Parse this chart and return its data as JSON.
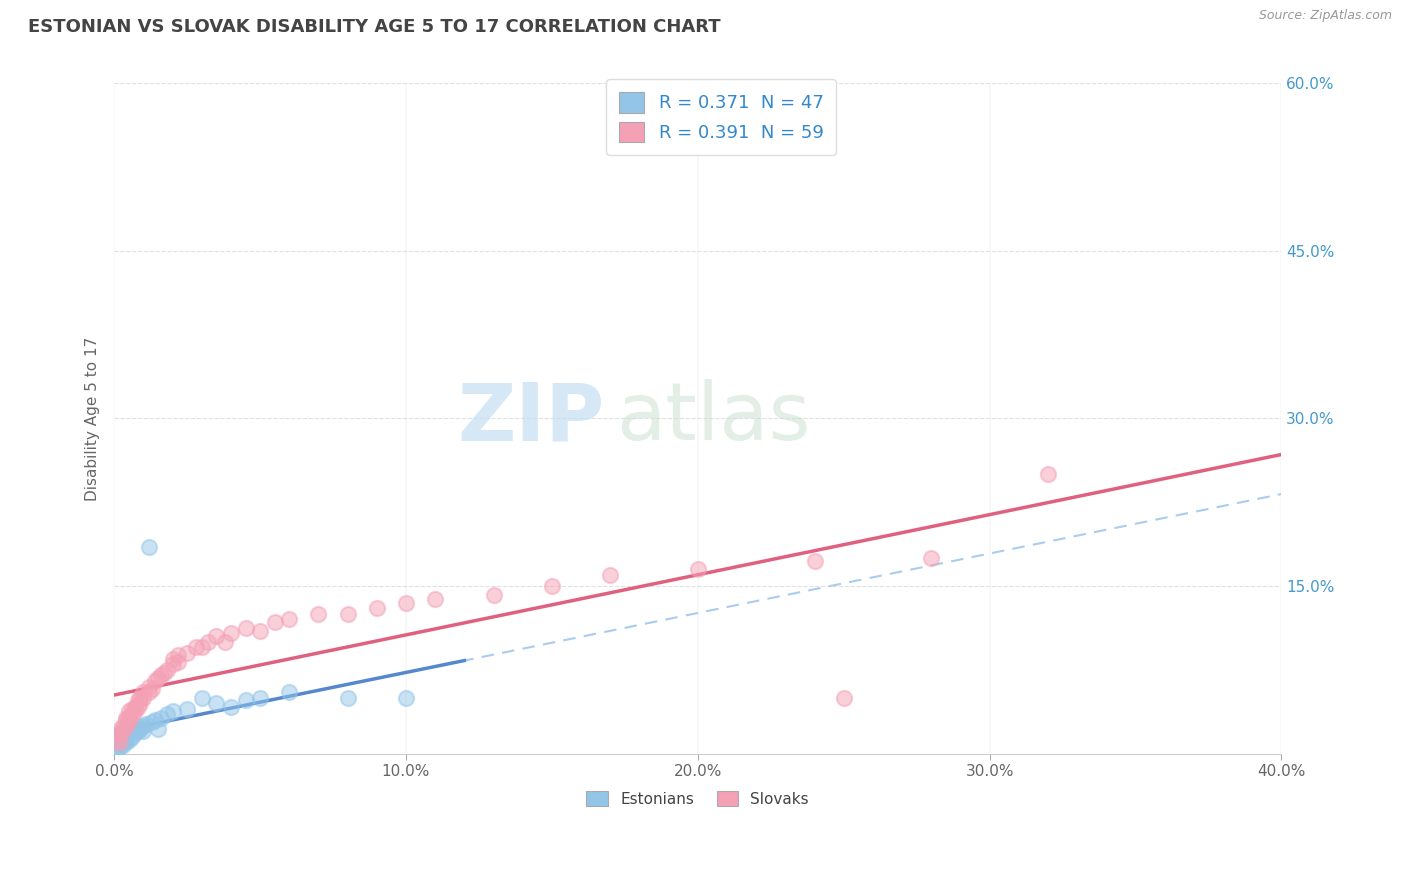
{
  "title": "ESTONIAN VS SLOVAK DISABILITY AGE 5 TO 17 CORRELATION CHART",
  "source_text": "Source: ZipAtlas.com",
  "ylabel": "Disability Age 5 to 17",
  "xlim": [
    0.0,
    0.4
  ],
  "ylim": [
    0.0,
    0.6
  ],
  "xtick_labels": [
    "0.0%",
    "10.0%",
    "20.0%",
    "30.0%",
    "40.0%"
  ],
  "xtick_vals": [
    0.0,
    0.1,
    0.2,
    0.3,
    0.4
  ],
  "ytick_labels_right": [
    "15.0%",
    "30.0%",
    "45.0%",
    "60.0%"
  ],
  "ytick_vals_right": [
    0.15,
    0.3,
    0.45,
    0.6
  ],
  "R_estonian": 0.371,
  "N_estonian": 47,
  "R_slovak": 0.391,
  "N_slovak": 59,
  "legend_label_1": "R = 0.371  N = 47",
  "legend_label_2": "R = 0.391  N = 59",
  "legend_bottom_1": "Estonians",
  "legend_bottom_2": "Slovaks",
  "watermark_zip": "ZIP",
  "watermark_atlas": "atlas",
  "estonian_color": "#92C5E8",
  "slovak_color": "#F4A0B5",
  "estonian_line_color": "#5588CC",
  "slovak_line_color": "#E06080",
  "estonian_dash_color": "#AACCEE",
  "background_color": "#FFFFFF",
  "grid_color": "#E0E0E0",
  "title_color": "#444444",
  "axis_label_color": "#666666",
  "estonian_scatter": [
    [
      0.001,
      0.005
    ],
    [
      0.001,
      0.008
    ],
    [
      0.001,
      0.01
    ],
    [
      0.001,
      0.012
    ],
    [
      0.002,
      0.006
    ],
    [
      0.002,
      0.009
    ],
    [
      0.002,
      0.012
    ],
    [
      0.002,
      0.015
    ],
    [
      0.002,
      0.018
    ],
    [
      0.003,
      0.008
    ],
    [
      0.003,
      0.01
    ],
    [
      0.003,
      0.013
    ],
    [
      0.003,
      0.016
    ],
    [
      0.003,
      0.02
    ],
    [
      0.004,
      0.01
    ],
    [
      0.004,
      0.013
    ],
    [
      0.004,
      0.018
    ],
    [
      0.004,
      0.022
    ],
    [
      0.005,
      0.012
    ],
    [
      0.005,
      0.018
    ],
    [
      0.005,
      0.022
    ],
    [
      0.006,
      0.015
    ],
    [
      0.006,
      0.02
    ],
    [
      0.007,
      0.018
    ],
    [
      0.007,
      0.022
    ],
    [
      0.008,
      0.02
    ],
    [
      0.008,
      0.025
    ],
    [
      0.009,
      0.022
    ],
    [
      0.01,
      0.025
    ],
    [
      0.01,
      0.02
    ],
    [
      0.011,
      0.026
    ],
    [
      0.012,
      0.185
    ],
    [
      0.013,
      0.028
    ],
    [
      0.014,
      0.03
    ],
    [
      0.015,
      0.022
    ],
    [
      0.016,
      0.032
    ],
    [
      0.018,
      0.035
    ],
    [
      0.02,
      0.038
    ],
    [
      0.025,
      0.04
    ],
    [
      0.03,
      0.05
    ],
    [
      0.035,
      0.045
    ],
    [
      0.04,
      0.042
    ],
    [
      0.045,
      0.048
    ],
    [
      0.05,
      0.05
    ],
    [
      0.06,
      0.055
    ],
    [
      0.08,
      0.05
    ],
    [
      0.1,
      0.05
    ]
  ],
  "slovak_scatter": [
    [
      0.001,
      0.01
    ],
    [
      0.001,
      0.015
    ],
    [
      0.002,
      0.01
    ],
    [
      0.002,
      0.018
    ],
    [
      0.002,
      0.022
    ],
    [
      0.003,
      0.02
    ],
    [
      0.003,
      0.025
    ],
    [
      0.004,
      0.025
    ],
    [
      0.004,
      0.03
    ],
    [
      0.004,
      0.032
    ],
    [
      0.005,
      0.028
    ],
    [
      0.005,
      0.032
    ],
    [
      0.005,
      0.038
    ],
    [
      0.006,
      0.035
    ],
    [
      0.006,
      0.04
    ],
    [
      0.007,
      0.038
    ],
    [
      0.007,
      0.042
    ],
    [
      0.008,
      0.042
    ],
    [
      0.008,
      0.048
    ],
    [
      0.009,
      0.045
    ],
    [
      0.009,
      0.05
    ],
    [
      0.01,
      0.05
    ],
    [
      0.01,
      0.055
    ],
    [
      0.012,
      0.055
    ],
    [
      0.012,
      0.06
    ],
    [
      0.013,
      0.058
    ],
    [
      0.014,
      0.065
    ],
    [
      0.015,
      0.068
    ],
    [
      0.016,
      0.07
    ],
    [
      0.017,
      0.072
    ],
    [
      0.018,
      0.075
    ],
    [
      0.02,
      0.08
    ],
    [
      0.02,
      0.085
    ],
    [
      0.022,
      0.082
    ],
    [
      0.022,
      0.088
    ],
    [
      0.025,
      0.09
    ],
    [
      0.028,
      0.095
    ],
    [
      0.03,
      0.095
    ],
    [
      0.032,
      0.1
    ],
    [
      0.035,
      0.105
    ],
    [
      0.038,
      0.1
    ],
    [
      0.04,
      0.108
    ],
    [
      0.045,
      0.112
    ],
    [
      0.05,
      0.11
    ],
    [
      0.055,
      0.118
    ],
    [
      0.06,
      0.12
    ],
    [
      0.07,
      0.125
    ],
    [
      0.08,
      0.125
    ],
    [
      0.09,
      0.13
    ],
    [
      0.1,
      0.135
    ],
    [
      0.11,
      0.138
    ],
    [
      0.13,
      0.142
    ],
    [
      0.15,
      0.15
    ],
    [
      0.17,
      0.16
    ],
    [
      0.2,
      0.165
    ],
    [
      0.24,
      0.172
    ],
    [
      0.25,
      0.05
    ],
    [
      0.28,
      0.175
    ],
    [
      0.32,
      0.25
    ]
  ]
}
